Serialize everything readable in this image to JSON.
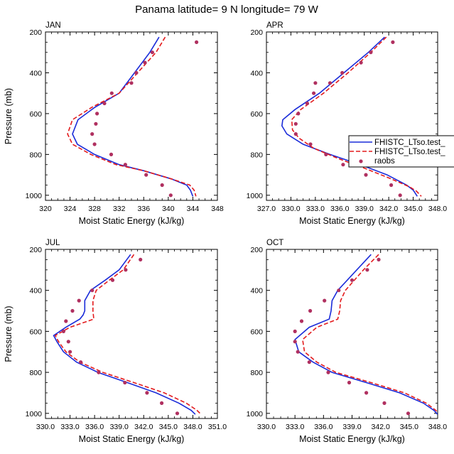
{
  "figure_title": "Panama  latitude= 9 N longitude= 79 W",
  "colors": {
    "series1": "#1a2bd9",
    "series2": "#e31a1c",
    "obs": "#b03060"
  },
  "legend": {
    "entries": [
      {
        "label": "FHISTC_LTso.test_",
        "style": "solid"
      },
      {
        "label": "FHISTC_LTso.test_",
        "style": "dashed"
      },
      {
        "label": "raobs",
        "style": "dot"
      }
    ]
  },
  "chart_data": [
    {
      "type": "line",
      "title": "JAN",
      "xlabel": "Moist Static Energy (kJ/kg)",
      "ylabel": "Pressure (mb)",
      "xlim": [
        320,
        348
      ],
      "xticks": [
        320,
        324,
        328,
        332,
        336,
        340,
        344,
        348
      ],
      "xtick_labels": [
        "320",
        "324",
        "328",
        "332",
        "336",
        "340",
        "344",
        "348"
      ],
      "ylim": [
        1025,
        200
      ],
      "yticks": [
        200,
        400,
        600,
        800,
        1000
      ],
      "ytick_labels": [
        "200",
        "400",
        "600",
        "800",
        "1000"
      ],
      "series": [
        {
          "name": "FHISTC_LTso.test_ (solid)",
          "points": [
            [
              338.5,
              225
            ],
            [
              337,
              300
            ],
            [
              334.5,
              400
            ],
            [
              332,
              500
            ],
            [
              328,
              570
            ],
            [
              325.3,
              630
            ],
            [
              324.4,
              700
            ],
            [
              325.2,
              750
            ],
            [
              328,
              800
            ],
            [
              332,
              850
            ],
            [
              336,
              880
            ],
            [
              340.5,
              920
            ],
            [
              343,
              950
            ],
            [
              343.6,
              975
            ],
            [
              344,
              1005
            ]
          ]
        },
        {
          "name": "FHISTC_LTso.test_ (dashed)",
          "points": [
            [
              339.5,
              225
            ],
            [
              338,
              300
            ],
            [
              335,
              400
            ],
            [
              332,
              500
            ],
            [
              327.5,
              570
            ],
            [
              324.4,
              630
            ],
            [
              323.6,
              700
            ],
            [
              324.4,
              750
            ],
            [
              327.4,
              800
            ],
            [
              331.5,
              850
            ],
            [
              336,
              880
            ],
            [
              340.5,
              920
            ],
            [
              343.5,
              950
            ],
            [
              344.2,
              975
            ],
            [
              344.5,
              1005
            ]
          ]
        }
      ],
      "obs": {
        "name": "raobs",
        "points": [
          [
            344.6,
            250
          ],
          [
            337.4,
            300
          ],
          [
            336.2,
            350
          ],
          [
            334.8,
            400
          ],
          [
            334,
            450
          ],
          [
            330.8,
            500
          ],
          [
            329.6,
            550
          ],
          [
            328.4,
            600
          ],
          [
            328.2,
            650
          ],
          [
            327.6,
            700
          ],
          [
            328,
            750
          ],
          [
            330.7,
            800
          ],
          [
            333,
            850
          ],
          [
            336.4,
            900
          ],
          [
            339,
            950
          ],
          [
            340.4,
            1000
          ]
        ]
      }
    },
    {
      "type": "line",
      "title": "APR",
      "xlabel": "Moist Static Energy (kJ/kg)",
      "ylabel": "",
      "xlim": [
        327,
        348
      ],
      "xticks": [
        327,
        330,
        333,
        336,
        339,
        342,
        345,
        348
      ],
      "xtick_labels": [
        "327.0",
        "330.0",
        "333.0",
        "336.0",
        "339.0",
        "342.0",
        "345.0",
        "348.0"
      ],
      "ylim": [
        1025,
        200
      ],
      "yticks": [
        200,
        400,
        600,
        800,
        1000
      ],
      "ytick_labels": [
        "200",
        "400",
        "600",
        "800",
        "1000"
      ],
      "series": [
        {
          "name": "FHISTC_LTso.test_ (solid)",
          "points": [
            [
              341.5,
              225
            ],
            [
              339.5,
              300
            ],
            [
              336.5,
              400
            ],
            [
              333.5,
              500
            ],
            [
              330.5,
              580
            ],
            [
              329,
              630
            ],
            [
              328.9,
              660
            ],
            [
              329.5,
              700
            ],
            [
              331.5,
              750
            ],
            [
              334.8,
              800
            ],
            [
              338.5,
              850
            ],
            [
              341.8,
              900
            ],
            [
              344.2,
              950
            ],
            [
              345,
              975
            ],
            [
              345.5,
              1005
            ]
          ]
        },
        {
          "name": "FHISTC_LTso.test_ (dashed)",
          "points": [
            [
              341.7,
              225
            ],
            [
              339.8,
              300
            ],
            [
              337,
              400
            ],
            [
              334,
              500
            ],
            [
              331.2,
              580
            ],
            [
              330.1,
              630
            ],
            [
              330.2,
              680
            ],
            [
              331,
              720
            ],
            [
              332.8,
              770
            ],
            [
              335.8,
              820
            ],
            [
              339.2,
              870
            ],
            [
              342.3,
              920
            ],
            [
              344.6,
              960
            ],
            [
              345.4,
              980
            ],
            [
              346,
              1005
            ]
          ]
        }
      ],
      "obs": {
        "name": "raobs",
        "points": [
          [
            342.5,
            250
          ],
          [
            339.8,
            300
          ],
          [
            338.6,
            350
          ],
          [
            336.3,
            400
          ],
          [
            334.8,
            450
          ],
          [
            333,
            450
          ],
          [
            332.8,
            500
          ],
          [
            332,
            550
          ],
          [
            330.9,
            600
          ],
          [
            330.6,
            650
          ],
          [
            330.6,
            700
          ],
          [
            332.4,
            750
          ],
          [
            334.3,
            800
          ],
          [
            336.4,
            850
          ],
          [
            339.2,
            900
          ],
          [
            342.3,
            950
          ],
          [
            343.4,
            1000
          ]
        ]
      }
    },
    {
      "type": "line",
      "title": "JUL",
      "xlabel": "Moist Static Energy (kJ/kg)",
      "ylabel": "Pressure (mb)",
      "xlim": [
        330,
        351
      ],
      "xticks": [
        330,
        333,
        336,
        339,
        342,
        345,
        348,
        351
      ],
      "xtick_labels": [
        "330.0",
        "333.0",
        "336.0",
        "339.0",
        "342.0",
        "345.0",
        "348.0",
        "351.0"
      ],
      "ylim": [
        1025,
        200
      ],
      "yticks": [
        200,
        400,
        600,
        800,
        1000
      ],
      "ytick_labels": [
        "200",
        "400",
        "600",
        "800",
        "1000"
      ],
      "series": [
        {
          "name": "FHISTC_LTso.test_ (solid)",
          "points": [
            [
              340.4,
              225
            ],
            [
              339,
              300
            ],
            [
              337.3,
              350
            ],
            [
              335.5,
              400
            ],
            [
              334.8,
              450
            ],
            [
              334.8,
              500
            ],
            [
              334.6,
              520
            ],
            [
              334.2,
              540
            ],
            [
              332.5,
              580
            ],
            [
              331,
              620
            ],
            [
              331.4,
              650
            ],
            [
              332.2,
              700
            ],
            [
              333.8,
              750
            ],
            [
              336.4,
              800
            ],
            [
              340,
              850
            ],
            [
              343.5,
              900
            ],
            [
              346.3,
              950
            ],
            [
              347.8,
              985
            ],
            [
              348.3,
              1005
            ]
          ]
        },
        {
          "name": "FHISTC_LTso.test_ (dashed)",
          "points": [
            [
              340.8,
              225
            ],
            [
              339.5,
              300
            ],
            [
              337.8,
              350
            ],
            [
              336.2,
              400
            ],
            [
              335.8,
              450
            ],
            [
              335.8,
              500
            ],
            [
              335.9,
              540
            ],
            [
              333,
              580
            ],
            [
              331.2,
              620
            ],
            [
              331.6,
              650
            ],
            [
              332.5,
              700
            ],
            [
              334.2,
              750
            ],
            [
              337,
              800
            ],
            [
              340.8,
              850
            ],
            [
              344.5,
              900
            ],
            [
              347.2,
              950
            ],
            [
              348.5,
              985
            ],
            [
              349,
              1005
            ]
          ]
        }
      ],
      "obs": {
        "name": "raobs",
        "points": [
          [
            341.6,
            250
          ],
          [
            339.8,
            300
          ],
          [
            338.2,
            350
          ],
          [
            335.7,
            400
          ],
          [
            334.1,
            450
          ],
          [
            333.3,
            500
          ],
          [
            332.5,
            550
          ],
          [
            332.2,
            600
          ],
          [
            332.8,
            650
          ],
          [
            333,
            700
          ],
          [
            334.3,
            750
          ],
          [
            336.5,
            800
          ],
          [
            339.7,
            850
          ],
          [
            342.4,
            900
          ],
          [
            344.2,
            950
          ],
          [
            346.1,
            1000
          ]
        ]
      }
    },
    {
      "type": "line",
      "title": "OCT",
      "xlabel": "Moist Static Energy (kJ/kg)",
      "ylabel": "",
      "xlim": [
        330,
        348
      ],
      "xticks": [
        330,
        333,
        336,
        339,
        342,
        345,
        348
      ],
      "xtick_labels": [
        "330.0",
        "333.0",
        "336.0",
        "339.0",
        "342.0",
        "345.0",
        "348.0"
      ],
      "ylim": [
        1025,
        200
      ],
      "yticks": [
        200,
        400,
        600,
        800,
        1000
      ],
      "ytick_labels": [
        "200",
        "400",
        "600",
        "800",
        "1000"
      ],
      "series": [
        {
          "name": "FHISTC_LTso.test_ (solid)",
          "points": [
            [
              341,
              225
            ],
            [
              339.5,
              300
            ],
            [
              337.5,
              400
            ],
            [
              336.9,
              450
            ],
            [
              336.8,
              500
            ],
            [
              336.6,
              540
            ],
            [
              334.5,
              580
            ],
            [
              333,
              640
            ],
            [
              333.4,
              700
            ],
            [
              334.9,
              750
            ],
            [
              336.9,
              800
            ],
            [
              340.5,
              850
            ],
            [
              344,
              900
            ],
            [
              346.5,
              950
            ],
            [
              347.6,
              985
            ],
            [
              348,
              1005
            ]
          ]
        },
        {
          "name": "FHISTC_LTso.test_ (dashed)",
          "points": [
            [
              341.8,
              225
            ],
            [
              340.2,
              300
            ],
            [
              338.3,
              400
            ],
            [
              337.8,
              450
            ],
            [
              337.7,
              500
            ],
            [
              337.5,
              540
            ],
            [
              335.3,
              580
            ],
            [
              333.8,
              640
            ],
            [
              334,
              700
            ],
            [
              335.3,
              750
            ],
            [
              337.3,
              800
            ],
            [
              341,
              850
            ],
            [
              344.5,
              900
            ],
            [
              346.8,
              950
            ],
            [
              347.8,
              985
            ],
            [
              348.2,
              1005
            ]
          ]
        }
      ],
      "obs": {
        "name": "raobs",
        "points": [
          [
            341.8,
            250
          ],
          [
            340.6,
            300
          ],
          [
            339,
            350
          ],
          [
            337.6,
            400
          ],
          [
            336.1,
            450
          ],
          [
            334.6,
            500
          ],
          [
            333.7,
            550
          ],
          [
            333,
            600
          ],
          [
            333,
            650
          ],
          [
            333.3,
            700
          ],
          [
            334.5,
            750
          ],
          [
            336.5,
            800
          ],
          [
            338.7,
            850
          ],
          [
            340.5,
            900
          ],
          [
            342.4,
            950
          ],
          [
            344.9,
            1000
          ]
        ]
      }
    }
  ]
}
